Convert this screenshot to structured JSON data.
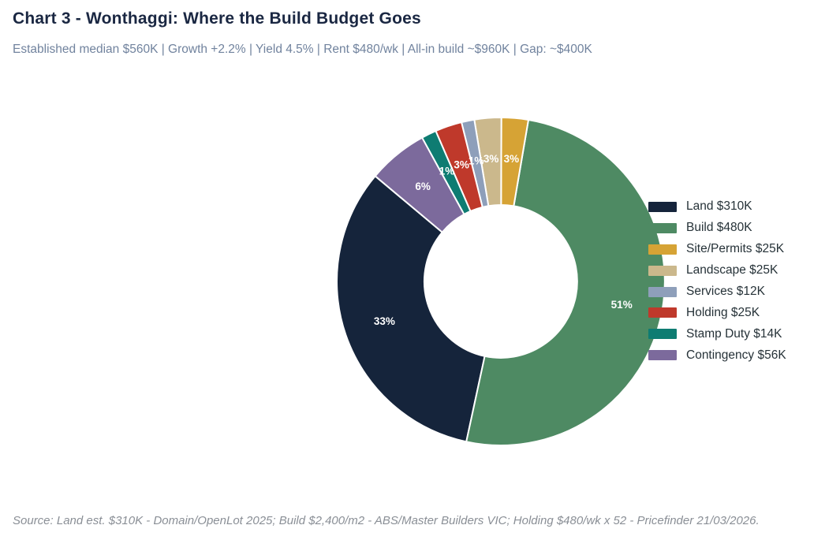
{
  "header": {
    "title": "Chart 3 - Wonthaggi: Where the Build Budget Goes",
    "subtitle": "Established median $560K | Growth +2.2% | Yield 4.5% | Rent $480/wk | All-in build ~$960K | Gap: ~$400K"
  },
  "footer": {
    "source": "Source: Land est. $310K - Domain/OpenLot 2025; Build $2,400/m2 - ABS/Master Builders VIC; Holding $480/wk x 52 - Pricefinder 21/03/2026."
  },
  "chart_data": {
    "type": "pie",
    "donut": true,
    "title": "Chart 3 - Wonthaggi: Where the Build Budget Goes",
    "legend_position": "right",
    "start_angle_deg": 140,
    "counterclockwise": true,
    "slices": [
      {
        "label": "Land $310K",
        "value": 310,
        "percent_label": "33%",
        "color": "#15243b"
      },
      {
        "label": "Build $480K",
        "value": 480,
        "percent_label": "51%",
        "color": "#4e8a63"
      },
      {
        "label": "Site/Permits $25K",
        "value": 25,
        "percent_label": "3%",
        "color": "#d6a335"
      },
      {
        "label": "Landscape $25K",
        "value": 25,
        "percent_label": "3%",
        "color": "#cbb88c"
      },
      {
        "label": "Services $12K",
        "value": 12,
        "percent_label": "1%",
        "color": "#8e9fba"
      },
      {
        "label": "Holding $25K",
        "value": 25,
        "percent_label": "3%",
        "color": "#bf392b"
      },
      {
        "label": "Stamp Duty $14K",
        "value": 14,
        "percent_label": "1%",
        "color": "#0e7c72"
      },
      {
        "label": "Contingency $56K",
        "value": 56,
        "percent_label": "6%",
        "color": "#7c6a9c"
      }
    ]
  }
}
